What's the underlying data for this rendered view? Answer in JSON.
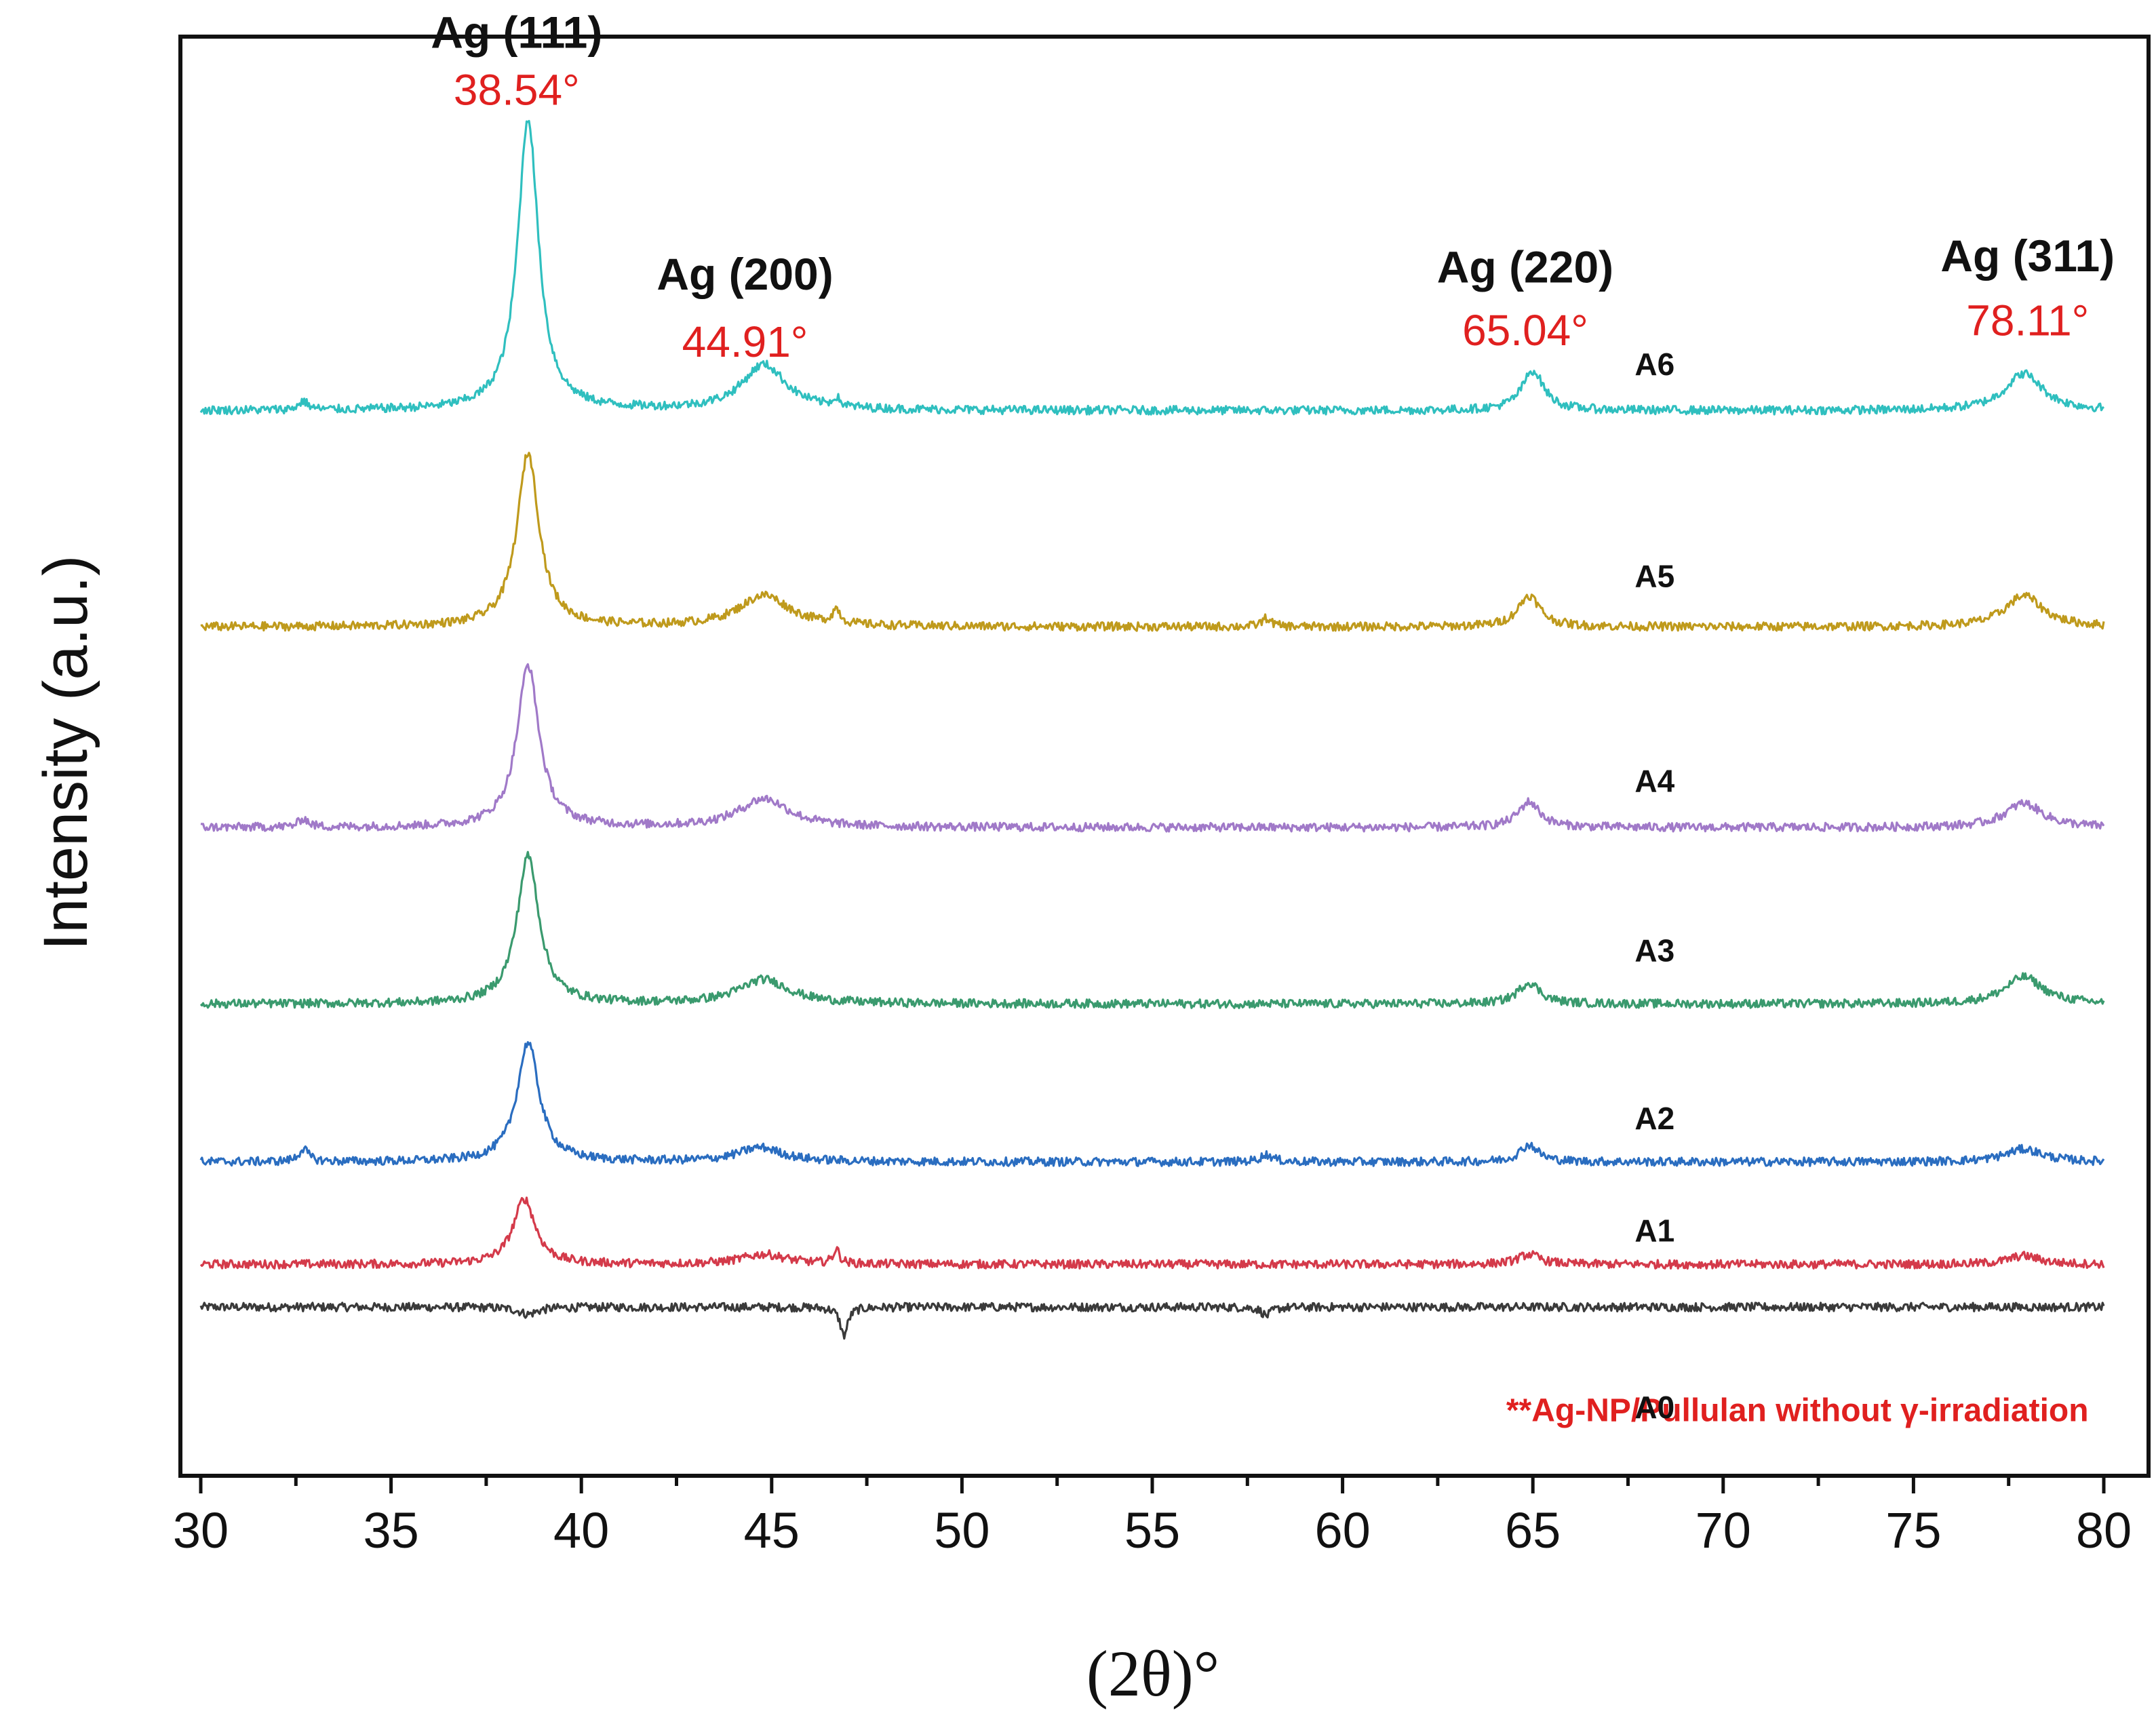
{
  "chart_data": {
    "type": "line",
    "title": "",
    "xlabel": "(2θ)°",
    "ylabel": "Intensity (a.u.)",
    "xlim": [
      30,
      80
    ],
    "ylim": [
      0,
      1
    ],
    "x_ticks": [
      30,
      35,
      40,
      45,
      50,
      55,
      60,
      65,
      70,
      75,
      80
    ],
    "x_tick_labels": [
      "30",
      "35",
      "40",
      "45",
      "50",
      "55",
      "60",
      "65",
      "70",
      "75",
      "80"
    ],
    "x_minor_step": 2.5,
    "y_ticks_shown": false,
    "series": [
      {
        "name": "A0",
        "label": "A0",
        "color": "#3a3a3a",
        "baseline": 0.11,
        "label_x": 68.2,
        "label_y": 0.032,
        "peaks": [
          {
            "x": 46.9,
            "h": -0.02,
            "w": 0.12
          },
          {
            "x": 38.6,
            "h": -0.005,
            "w": 0.3
          },
          {
            "x": 58.0,
            "h": -0.006,
            "w": 0.15
          }
        ]
      },
      {
        "name": "A1",
        "label": "A1",
        "color": "#d43a4a",
        "baseline": 0.14,
        "label_x": 68.2,
        "label_y": 0.156,
        "peaks": [
          {
            "x": 38.5,
            "h": 0.046,
            "w": 0.35
          },
          {
            "x": 44.8,
            "h": 0.007,
            "w": 0.7
          },
          {
            "x": 46.7,
            "h": 0.01,
            "w": 0.1
          },
          {
            "x": 64.9,
            "h": 0.007,
            "w": 0.35
          },
          {
            "x": 77.9,
            "h": 0.006,
            "w": 0.5
          }
        ]
      },
      {
        "name": "A2",
        "label": "A2",
        "color": "#2a6dc0",
        "baseline": 0.212,
        "label_x": 68.2,
        "label_y": 0.235,
        "peaks": [
          {
            "x": 32.7,
            "h": 0.009,
            "w": 0.15
          },
          {
            "x": 38.6,
            "h": 0.084,
            "w": 0.35
          },
          {
            "x": 44.7,
            "h": 0.01,
            "w": 0.7
          },
          {
            "x": 58.0,
            "h": 0.005,
            "w": 0.2
          },
          {
            "x": 64.9,
            "h": 0.012,
            "w": 0.3
          },
          {
            "x": 77.9,
            "h": 0.009,
            "w": 0.6
          }
        ]
      },
      {
        "name": "A3",
        "label": "A3",
        "color": "#3a9a6e",
        "baseline": 0.323,
        "label_x": 68.2,
        "label_y": 0.353,
        "peaks": [
          {
            "x": 38.6,
            "h": 0.104,
            "w": 0.35
          },
          {
            "x": 44.8,
            "h": 0.017,
            "w": 0.8
          },
          {
            "x": 64.9,
            "h": 0.015,
            "w": 0.35
          },
          {
            "x": 77.9,
            "h": 0.019,
            "w": 0.6
          }
        ]
      },
      {
        "name": "A4",
        "label": "A4",
        "color": "#a079c8",
        "baseline": 0.447,
        "label_x": 68.2,
        "label_y": 0.472,
        "peaks": [
          {
            "x": 32.7,
            "h": 0.006,
            "w": 0.15
          },
          {
            "x": 38.6,
            "h": 0.114,
            "w": 0.35
          },
          {
            "x": 44.8,
            "h": 0.02,
            "w": 0.8
          },
          {
            "x": 64.9,
            "h": 0.018,
            "w": 0.35
          },
          {
            "x": 77.9,
            "h": 0.017,
            "w": 0.6
          }
        ]
      },
      {
        "name": "A5",
        "label": "A5",
        "color": "#bf9a1c",
        "baseline": 0.588,
        "label_x": 68.2,
        "label_y": 0.616,
        "peaks": [
          {
            "x": 38.6,
            "h": 0.122,
            "w": 0.35
          },
          {
            "x": 44.8,
            "h": 0.022,
            "w": 0.8
          },
          {
            "x": 46.7,
            "h": 0.01,
            "w": 0.12
          },
          {
            "x": 58.0,
            "h": 0.006,
            "w": 0.15
          },
          {
            "x": 64.9,
            "h": 0.022,
            "w": 0.35
          },
          {
            "x": 77.9,
            "h": 0.022,
            "w": 0.6
          }
        ]
      },
      {
        "name": "A6",
        "label": "A6",
        "color": "#2fbfbf",
        "baseline": 0.74,
        "label_x": 68.2,
        "label_y": 0.765,
        "peaks": [
          {
            "x": 32.7,
            "h": 0.006,
            "w": 0.15
          },
          {
            "x": 38.6,
            "h": 0.205,
            "w": 0.33
          },
          {
            "x": 44.8,
            "h": 0.032,
            "w": 0.7
          },
          {
            "x": 46.7,
            "h": 0.006,
            "w": 0.1
          },
          {
            "x": 65.0,
            "h": 0.028,
            "w": 0.35
          },
          {
            "x": 77.9,
            "h": 0.026,
            "w": 0.6
          }
        ]
      }
    ],
    "annotations": [
      {
        "name": "ag-111",
        "plane": "Ag (111)",
        "position": "38.54°",
        "x": 38.3,
        "plane_y": 0.995,
        "pos_y": 0.955
      },
      {
        "name": "ag-200",
        "plane": "Ag (200)",
        "position": "44.91°",
        "x": 44.3,
        "plane_y": 0.825,
        "pos_y": 0.778
      },
      {
        "name": "ag-220",
        "plane": "Ag (220)",
        "position": "65.04°",
        "x": 64.8,
        "plane_y": 0.83,
        "pos_y": 0.786
      },
      {
        "name": "ag-311",
        "plane": "Ag (311)",
        "position": "78.11°",
        "x": 78.0,
        "plane_y": 0.838,
        "pos_y": 0.793
      }
    ],
    "note": {
      "text": "**Ag-NP/Pullulan without γ-irradiation",
      "color": "#e0201f",
      "x_end": 79.6,
      "y": 0.003
    },
    "annotation_color": "#e0201f"
  }
}
